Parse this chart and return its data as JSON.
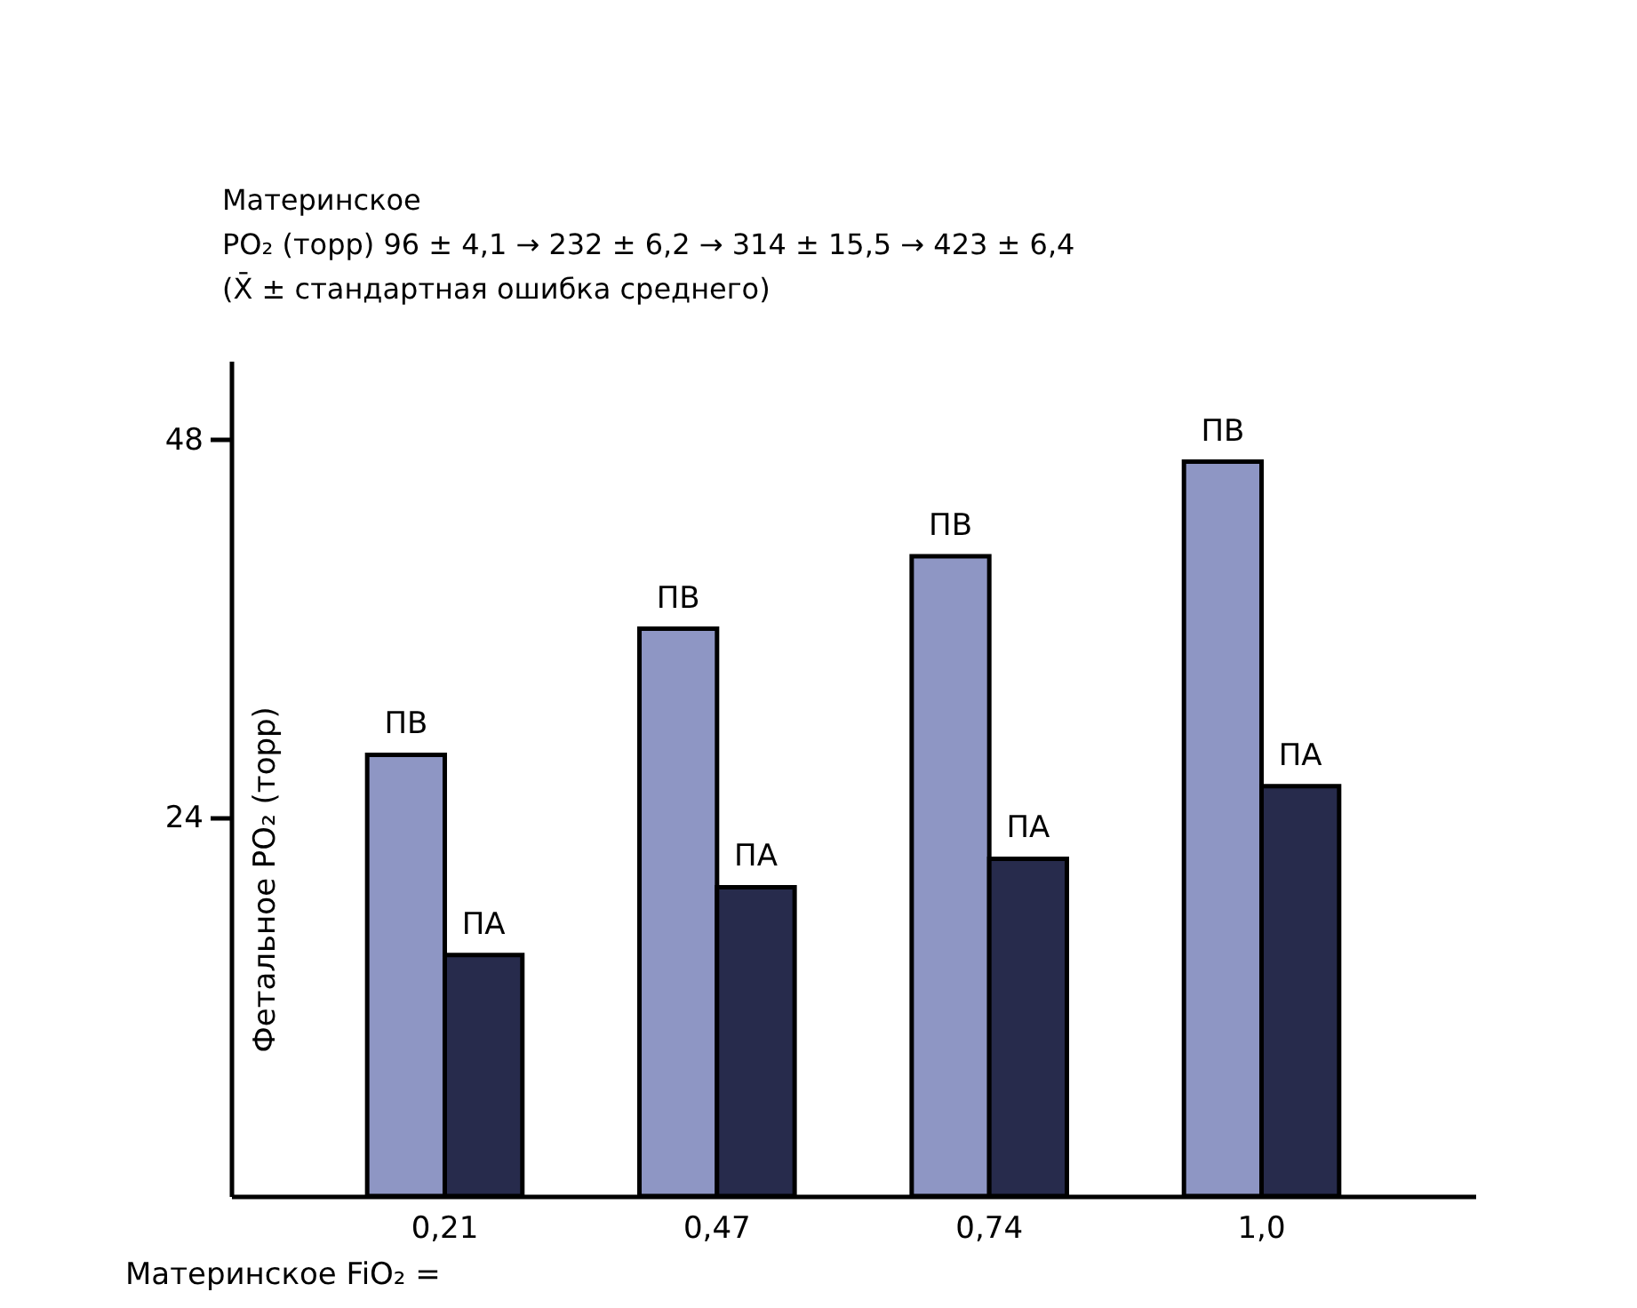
{
  "chart_data": {
    "type": "bar",
    "categories": [
      "0,21",
      "0,47",
      "0,74",
      "1,0"
    ],
    "xlabel": "Материнское FiO₂ =",
    "ylabel": "Фетальное PO₂ (торр)",
    "series": [
      {
        "name": "ПВ",
        "color": "#8e96c4",
        "values": [
          28,
          36,
          40.6,
          46.6
        ]
      },
      {
        "name": "ПА",
        "color": "#272b4c",
        "values": [
          15.3,
          19.6,
          21.4,
          26
        ]
      }
    ],
    "ylim": [
      0,
      53
    ],
    "yticks": [
      24,
      48
    ],
    "grid": false,
    "legend": false,
    "annotations": [
      "Материнское",
      "PO₂ (торр)       96 ± 4,1   →   232 ± 6,2   →   314 ± 15,5   →   423 ± 6,4",
      "(X̄ ± стандартная ошибка среднего)"
    ]
  }
}
